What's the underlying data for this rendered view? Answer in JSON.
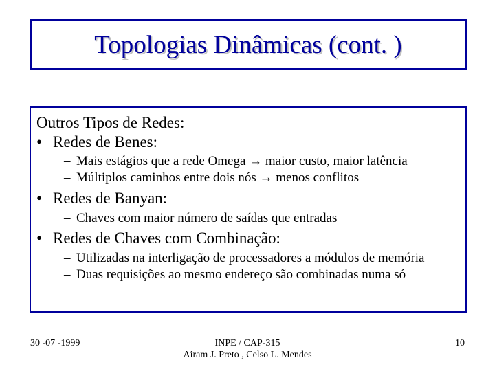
{
  "colors": {
    "border_color": "#00009c",
    "title_color": "#00009c",
    "title_shadow": "#c0c0c0",
    "text_color": "#000000",
    "background": "#ffffff"
  },
  "typography": {
    "title_fontsize": 37,
    "level1_fontsize": 23,
    "level2_fontsize": 19,
    "footer_fontsize": 14,
    "family": "Times New Roman"
  },
  "title": "Topologias Dinâmicas (cont. )",
  "heading": "Outros Tipos de Redes:",
  "sections": [
    {
      "label": "Redes de Benes:",
      "subitems": [
        "Mais estágios que a rede Omega  →  maior custo, maior latência",
        "Múltiplos caminhos entre dois nós → menos conflitos"
      ]
    },
    {
      "label": "Redes de Banyan:",
      "subitems": [
        "Chaves com maior número de saídas que entradas"
      ]
    },
    {
      "label": "Redes de Chaves com Combinação:",
      "subitems": [
        "Utilizadas na interligação de processadores a módulos de memória",
        "Duas requisições ao mesmo endereço são combinadas numa só"
      ]
    }
  ],
  "footer": {
    "date": "30 -07 -1999",
    "center_line1": "INPE / CAP-315",
    "center_line2": "Airam J. Preto , Celso L. Mendes",
    "page": "10"
  }
}
